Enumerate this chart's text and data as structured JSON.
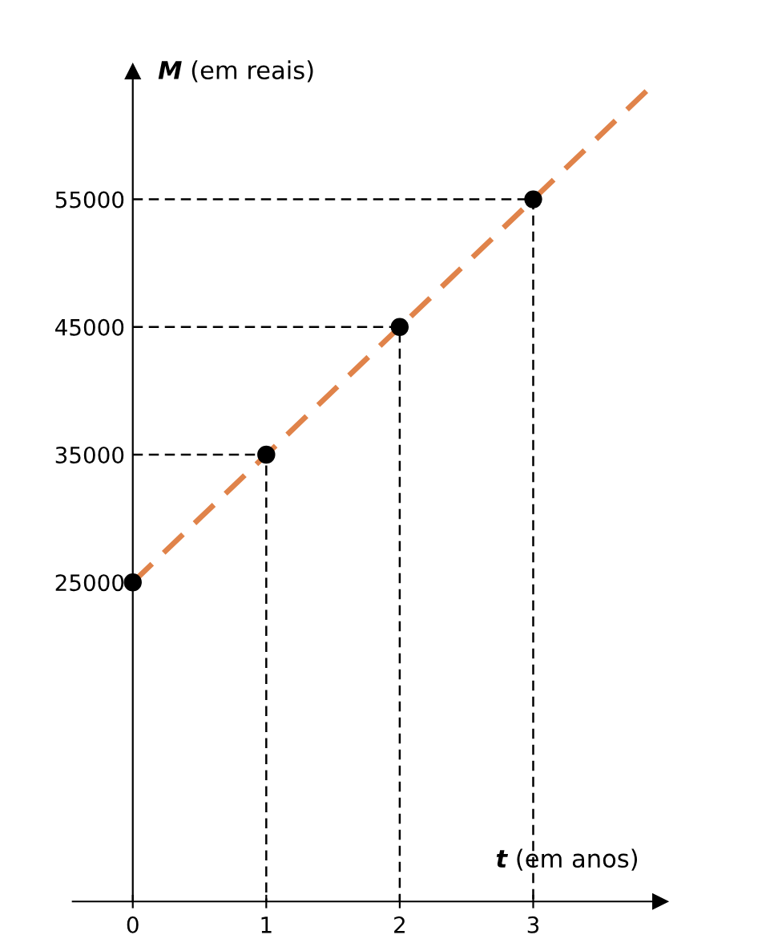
{
  "chart_data": {
    "type": "scatter",
    "xlabel": "t (em anos)",
    "ylabel": "M (em reais)",
    "series": [
      {
        "type": "line",
        "color": "#000000",
        "line_style": "dashed",
        "marker": "none",
        "x": [
          0,
          1,
          1
        ],
        "values": [
          35000,
          35000,
          0
        ]
      },
      {
        "type": "line",
        "color": "#000000",
        "line_style": "dashed",
        "marker": "none",
        "x": [
          0,
          2,
          2
        ],
        "values": [
          45000,
          45000,
          0
        ]
      },
      {
        "type": "line",
        "color": "#000000",
        "line_style": "dashed",
        "marker": "none",
        "x": [
          0,
          3,
          3
        ],
        "values": [
          55000,
          55000,
          0
        ]
      },
      {
        "type": "line",
        "color": "#e0834a",
        "line_style": "dashed",
        "marker": "none",
        "x": [
          0,
          1,
          2,
          3,
          3.9
        ],
        "values": [
          25000,
          35000,
          45000,
          55000,
          64000
        ]
      },
      {
        "color": "#000000",
        "marker": "circle",
        "x": [
          0,
          1,
          2,
          3
        ],
        "values": [
          25000,
          35000,
          45000,
          55000
        ]
      }
    ],
    "xlim": [
      -0.45,
      3.95
    ],
    "ylim": [
      0,
      65000
    ],
    "xticks": [
      0,
      1,
      2,
      3
    ],
    "yticks": [
      25000,
      35000,
      45000,
      55000
    ]
  }
}
